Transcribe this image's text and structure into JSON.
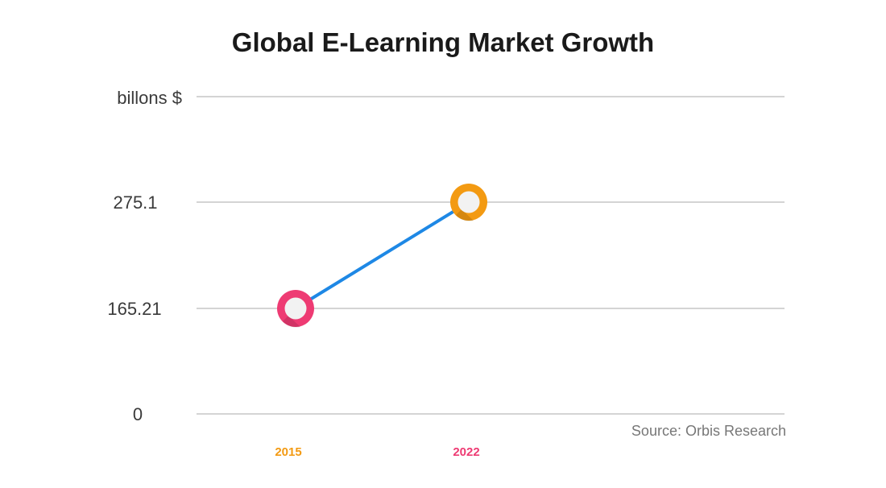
{
  "chart_data": {
    "type": "line",
    "title": "Global E-Learning Market Growth",
    "ylabel": "billons $",
    "yticks": [
      "0",
      "165.21",
      "275.1"
    ],
    "ylim": [
      0,
      375
    ],
    "grid": true,
    "categories": [
      "2015",
      "2022"
    ],
    "series": [
      {
        "values": [
          165.21,
          275.1
        ],
        "color": "#1e88e5"
      }
    ],
    "point_colors": [
      "#ee3b73",
      "#f39a12"
    ],
    "xtick_colors": [
      "#f39a12",
      "#ee3b73"
    ],
    "source": "Source: Orbis Research"
  }
}
